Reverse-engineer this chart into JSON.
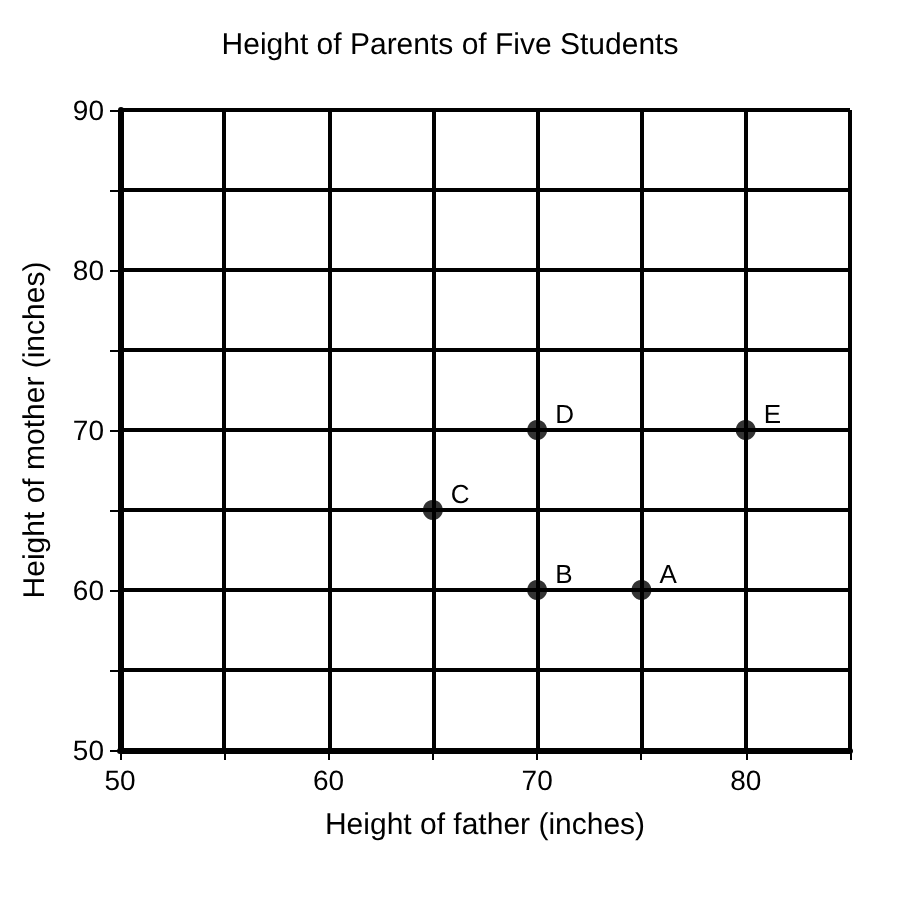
{
  "chart_data": {
    "type": "scatter",
    "title": "Height of Parents of Five Students",
    "xlabel": "Height of father (inches)",
    "ylabel": "Height of mother (inches)",
    "x": [
      75,
      70,
      65,
      70,
      80
    ],
    "values": [
      60,
      60,
      65,
      70,
      70
    ],
    "color": "#000000",
    "marker": "circle",
    "grid": true,
    "xlim": [
      50,
      85
    ],
    "xticks": [
      50,
      {
        "value": 55,
        "label": null
      },
      60,
      {
        "value": 65,
        "label": null
      },
      70,
      {
        "value": 75,
        "label": null
      },
      80,
      {
        "value": 85,
        "label": null
      }
    ],
    "ylim": [
      50,
      90
    ],
    "yticks": [
      50,
      {
        "value": 55,
        "label": null
      },
      60,
      {
        "value": 65,
        "label": null
      },
      70,
      {
        "value": 75,
        "label": null
      },
      80,
      {
        "value": 85,
        "label": null
      },
      90
    ],
    "annotations": [
      {
        "text": "A",
        "x": 75,
        "y": 60
      },
      {
        "text": "B",
        "x": 70,
        "y": 60
      },
      {
        "text": "C",
        "x": 65,
        "y": 65
      },
      {
        "text": "D",
        "x": 70,
        "y": 70
      },
      {
        "text": "E",
        "x": 80,
        "y": 70
      }
    ]
  }
}
